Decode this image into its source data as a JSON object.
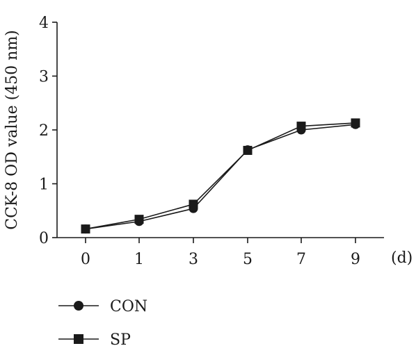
{
  "chart_data": {
    "type": "line",
    "x_categories": [
      "0",
      "1",
      "3",
      "5",
      "7",
      "9"
    ],
    "xlabel_unit": "(d)",
    "ylabel": "CCK-8 OD value (450 nm)",
    "ylim": [
      0,
      4
    ],
    "yticks": [
      "0",
      "1",
      "2",
      "3",
      "4"
    ],
    "grid": false,
    "legend_placement": "bottom-left",
    "series": [
      {
        "name": "CON",
        "marker": "circle",
        "values": [
          0.16,
          0.3,
          0.54,
          1.63,
          2.0,
          2.1
        ]
      },
      {
        "name": "SP",
        "marker": "square",
        "values": [
          0.16,
          0.34,
          0.62,
          1.62,
          2.07,
          2.13
        ]
      }
    ]
  }
}
